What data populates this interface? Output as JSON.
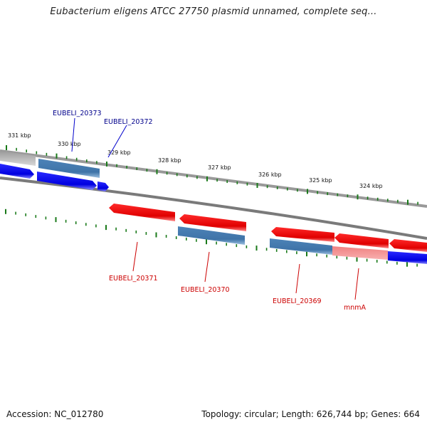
{
  "title": "Eubacterium eligens ATCC 27750 plasmid unnamed, complete seq...",
  "footer": {
    "accession": "Accession: NC_012780",
    "summary": "Topology: circular; Length: 626,744 bp; Genes: 664"
  },
  "colors": {
    "backbone": "#808080",
    "tick": "#1a7a1a",
    "forward_gene": "#0000ee",
    "reverse_gene": "#ee0000",
    "other_gene": "#4a7fb0",
    "label_forward": "#00008b",
    "label_reverse": "#cc0000"
  },
  "ticks": [
    {
      "label": "331 kbp"
    },
    {
      "label": "330 kbp"
    },
    {
      "label": "329 kbp"
    },
    {
      "label": "328 kbp"
    },
    {
      "label": "327 kbp"
    },
    {
      "label": "326 kbp"
    },
    {
      "label": "325 kbp"
    },
    {
      "label": "324 kbp"
    }
  ],
  "gene_labels": [
    {
      "text": "EUBELI_20373"
    },
    {
      "text": "EUBELI_20372"
    },
    {
      "text": "EUBELI_20371"
    },
    {
      "text": "EUBELI_20370"
    },
    {
      "text": "EUBELI_20369"
    },
    {
      "text": "mnmA"
    }
  ]
}
